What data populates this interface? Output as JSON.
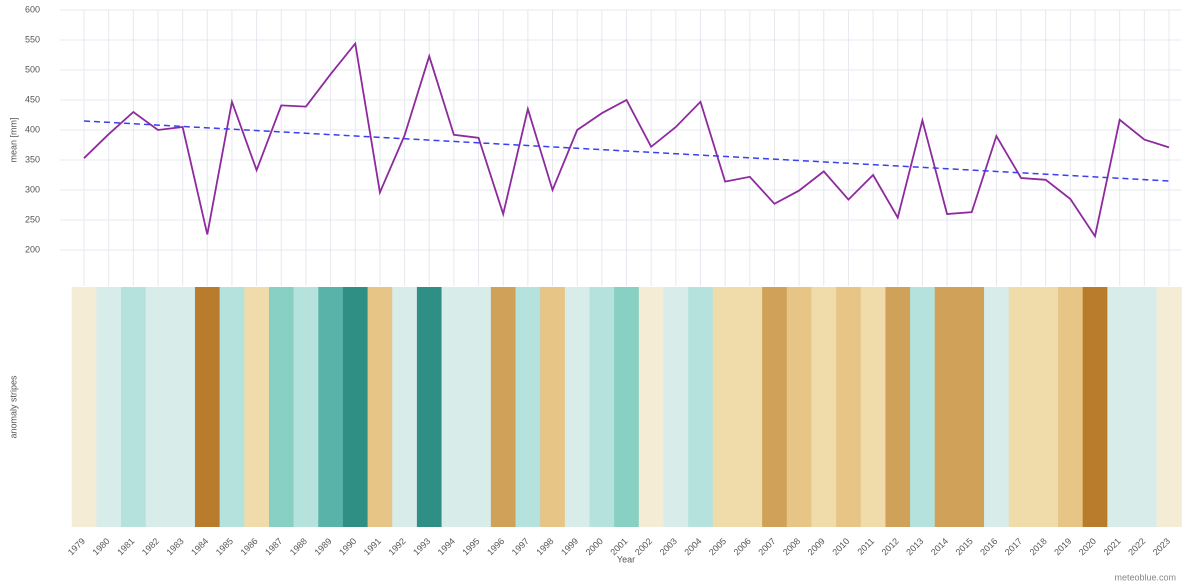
{
  "chart_data": {
    "type": "line",
    "x": [
      1979,
      1980,
      1981,
      1982,
      1983,
      1984,
      1985,
      1986,
      1987,
      1988,
      1989,
      1990,
      1991,
      1992,
      1993,
      1994,
      1995,
      1996,
      1997,
      1998,
      1999,
      2000,
      2001,
      2002,
      2003,
      2004,
      2005,
      2006,
      2007,
      2008,
      2009,
      2010,
      2011,
      2012,
      2013,
      2014,
      2015,
      2016,
      2017,
      2018,
      2019,
      2020,
      2021,
      2022,
      2023
    ],
    "values": [
      353,
      393,
      430,
      400,
      405,
      226,
      447,
      333,
      441,
      439,
      493,
      544,
      296,
      391,
      523,
      392,
      387,
      260,
      435,
      300,
      400,
      428,
      450,
      372,
      405,
      447,
      314,
      322,
      277,
      299,
      331,
      284,
      325,
      254,
      416,
      260,
      263,
      390,
      320,
      317,
      285,
      223,
      417,
      384,
      371
    ],
    "color": "#8e2a9e",
    "trend": {
      "x": [
        1979,
        2023
      ],
      "values": [
        415,
        315
      ],
      "color": "#3a3ff0"
    },
    "stripe_colors": [
      "#f5ecd6",
      "#d8ecea",
      "#b5e2dc",
      "#d8ecea",
      "#d8ecea",
      "#b97c2c",
      "#b5e2dc",
      "#f0dcaa",
      "#88d0c4",
      "#b5e2dc",
      "#5ab3a8",
      "#2f8f85",
      "#e6c586",
      "#d8ecea",
      "#2f8f85",
      "#d8ecea",
      "#d8ecea",
      "#d0a259",
      "#b5e2dc",
      "#e6c586",
      "#d8ecea",
      "#b5e2dc",
      "#88d0c4",
      "#f5ecd6",
      "#d8ecea",
      "#b5e2dc",
      "#f0dcaa",
      "#f0dcaa",
      "#d0a259",
      "#e6c586",
      "#f0dcaa",
      "#e6c586",
      "#f0dcaa",
      "#d0a259",
      "#b5e2dc",
      "#d0a259",
      "#d0a259",
      "#d8ecea",
      "#f0dcaa",
      "#f0dcaa",
      "#e6c586",
      "#b97c2c",
      "#d8ecea",
      "#d8ecea",
      "#f5ecd6"
    ],
    "ylabel": "mean [mm]",
    "stripes_label": "anomaly stripes",
    "xlabel": "Year",
    "credit": "meteoblue.com",
    "ylim": [
      140,
      600
    ],
    "yticks": [
      200,
      250,
      300,
      350,
      400,
      450,
      500,
      550,
      600
    ],
    "grid": true
  }
}
